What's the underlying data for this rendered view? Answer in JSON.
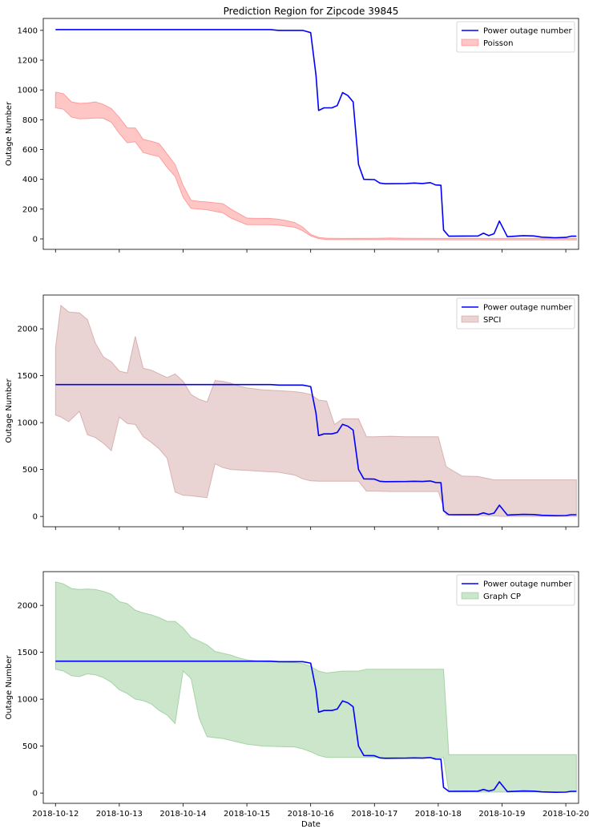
{
  "figure": {
    "title": "Prediction Region for Zipcode 39845",
    "xlabel": "Date"
  },
  "chart_data": [
    {
      "type": "line",
      "title": "Prediction Region for Zipcode 39845",
      "xlabel": "",
      "ylabel": "Outage Number",
      "xlim": [
        "2018-10-11 19:24",
        "2018-10-20 04:48"
      ],
      "ylim": [
        -70,
        1480
      ],
      "yticks": [
        0,
        200,
        400,
        600,
        800,
        1000,
        1200,
        1400
      ],
      "legend_position": "top-right",
      "actual": {
        "name": "Power outage number",
        "color": "#0000ff",
        "points": [
          [
            "2018-10-12 00:00",
            1405
          ],
          [
            "2018-10-15 09:00",
            1405
          ],
          [
            "2018-10-15 12:00",
            1400
          ],
          [
            "2018-10-15 21:00",
            1400
          ],
          [
            "2018-10-16 00:00",
            1385
          ],
          [
            "2018-10-16 02:00",
            1100
          ],
          [
            "2018-10-16 03:00",
            862
          ],
          [
            "2018-10-16 05:00",
            880
          ],
          [
            "2018-10-16 08:00",
            880
          ],
          [
            "2018-10-16 10:00",
            895
          ],
          [
            "2018-10-16 12:00",
            982
          ],
          [
            "2018-10-16 14:00",
            962
          ],
          [
            "2018-10-16 16:00",
            920
          ],
          [
            "2018-10-16 18:00",
            500
          ],
          [
            "2018-10-16 20:00",
            400
          ],
          [
            "2018-10-17 00:00",
            398
          ],
          [
            "2018-10-17 02:00",
            375
          ],
          [
            "2018-10-17 04:00",
            370
          ],
          [
            "2018-10-17 12:00",
            372
          ],
          [
            "2018-10-17 15:00",
            375
          ],
          [
            "2018-10-17 18:00",
            372
          ],
          [
            "2018-10-17 21:00",
            378
          ],
          [
            "2018-10-17 23:00",
            362
          ],
          [
            "2018-10-18 01:00",
            360
          ],
          [
            "2018-10-18 02:00",
            60
          ],
          [
            "2018-10-18 04:00",
            18
          ],
          [
            "2018-10-18 15:00",
            20
          ],
          [
            "2018-10-18 17:00",
            38
          ],
          [
            "2018-10-18 19:00",
            22
          ],
          [
            "2018-10-18 21:00",
            35
          ],
          [
            "2018-10-18 23:00",
            120
          ],
          [
            "2018-10-19 02:00",
            15
          ],
          [
            "2018-10-19 08:00",
            22
          ],
          [
            "2018-10-19 12:00",
            20
          ],
          [
            "2018-10-19 15:00",
            12
          ],
          [
            "2018-10-19 20:00",
            8
          ],
          [
            "2018-10-20 00:00",
            10
          ],
          [
            "2018-10-20 02:00",
            18
          ],
          [
            "2018-10-20 04:00",
            18
          ]
        ]
      },
      "band": {
        "name": "Poisson",
        "color": "#ff8080",
        "alpha": 0.45,
        "edge_alpha": 0.7,
        "x": [
          "2018-10-12 00:00",
          "2018-10-12 03:00",
          "2018-10-12 06:00",
          "2018-10-12 09:00",
          "2018-10-12 12:00",
          "2018-10-12 15:00",
          "2018-10-12 18:00",
          "2018-10-12 21:00",
          "2018-10-13 00:00",
          "2018-10-13 03:00",
          "2018-10-13 06:00",
          "2018-10-13 09:00",
          "2018-10-13 12:00",
          "2018-10-13 15:00",
          "2018-10-13 18:00",
          "2018-10-13 21:00",
          "2018-10-14 00:00",
          "2018-10-14 03:00",
          "2018-10-14 06:00",
          "2018-10-14 09:00",
          "2018-10-14 12:00",
          "2018-10-14 15:00",
          "2018-10-14 18:00",
          "2018-10-14 21:00",
          "2018-10-15 00:00",
          "2018-10-15 03:00",
          "2018-10-15 06:00",
          "2018-10-15 09:00",
          "2018-10-15 12:00",
          "2018-10-15 15:00",
          "2018-10-15 18:00",
          "2018-10-15 21:00",
          "2018-10-16 00:00",
          "2018-10-16 03:00",
          "2018-10-16 06:00",
          "2018-10-16 12:00",
          "2018-10-17 00:00",
          "2018-10-17 06:00",
          "2018-10-17 12:00",
          "2018-10-18 00:00",
          "2018-10-19 00:00",
          "2018-10-20 00:00",
          "2018-10-20 04:00"
        ],
        "lower": [
          880,
          870,
          818,
          806,
          808,
          812,
          810,
          783,
          708,
          645,
          652,
          580,
          565,
          552,
          480,
          420,
          280,
          205,
          200,
          196,
          185,
          175,
          140,
          118,
          96,
          96,
          96,
          96,
          92,
          85,
          78,
          55,
          20,
          2,
          -5,
          -5,
          -5,
          -5,
          -6,
          -6,
          -7,
          -7,
          -7
        ],
        "upper": [
          985,
          975,
          920,
          910,
          912,
          920,
          903,
          875,
          816,
          745,
          745,
          668,
          656,
          640,
          570,
          500,
          360,
          260,
          252,
          248,
          242,
          236,
          200,
          170,
          140,
          138,
          138,
          137,
          132,
          122,
          110,
          80,
          30,
          10,
          5,
          3,
          4,
          6,
          4,
          3,
          3,
          3,
          3
        ]
      }
    },
    {
      "type": "line",
      "title": "",
      "xlabel": "",
      "ylabel": "Outage Number",
      "xlim": [
        "2018-10-11 19:24",
        "2018-10-20 04:48"
      ],
      "ylim": [
        -110,
        2360
      ],
      "yticks": [
        0,
        500,
        1000,
        1500,
        2000
      ],
      "legend_position": "top-right",
      "actual": {
        "name": "Power outage number",
        "color": "#0000ff",
        "same_as_panel": 0
      },
      "band": {
        "name": "SPCI",
        "color": "#c08080",
        "alpha": 0.35,
        "edge_alpha": 0.5,
        "x": [
          "2018-10-12 00:00",
          "2018-10-12 02:00",
          "2018-10-12 05:00",
          "2018-10-12 09:00",
          "2018-10-12 12:00",
          "2018-10-12 15:00",
          "2018-10-12 18:00",
          "2018-10-12 21:00",
          "2018-10-13 00:00",
          "2018-10-13 03:00",
          "2018-10-13 06:00",
          "2018-10-13 09:00",
          "2018-10-13 12:00",
          "2018-10-13 15:00",
          "2018-10-13 18:00",
          "2018-10-13 21:00",
          "2018-10-14 00:00",
          "2018-10-14 03:00",
          "2018-10-14 06:00",
          "2018-10-14 09:00",
          "2018-10-14 12:00",
          "2018-10-14 15:00",
          "2018-10-14 18:00",
          "2018-10-14 21:00",
          "2018-10-15 00:00",
          "2018-10-15 06:00",
          "2018-10-15 12:00",
          "2018-10-15 18:00",
          "2018-10-15 21:00",
          "2018-10-16 00:00",
          "2018-10-16 03:00",
          "2018-10-16 06:00",
          "2018-10-16 09:00",
          "2018-10-16 12:00",
          "2018-10-16 18:00",
          "2018-10-16 21:00",
          "2018-10-17 00:00",
          "2018-10-17 06:00",
          "2018-10-17 12:00",
          "2018-10-18 00:00",
          "2018-10-18 03:00",
          "2018-10-18 06:00",
          "2018-10-18 09:00",
          "2018-10-18 15:00",
          "2018-10-18 21:00",
          "2018-10-19 00:00",
          "2018-10-20 00:00",
          "2018-10-20 04:00"
        ],
        "lower": [
          1080,
          1060,
          1010,
          1120,
          870,
          840,
          780,
          700,
          1060,
          990,
          980,
          850,
          790,
          720,
          620,
          260,
          225,
          220,
          210,
          200,
          560,
          520,
          500,
          495,
          490,
          480,
          470,
          440,
          400,
          380,
          375,
          375,
          375,
          375,
          375,
          270,
          270,
          265,
          265,
          265,
          15,
          10,
          10,
          10,
          5,
          0,
          0,
          0
        ],
        "upper": [
          1800,
          2250,
          2180,
          2170,
          2100,
          1850,
          1700,
          1650,
          1550,
          1530,
          1920,
          1580,
          1560,
          1520,
          1480,
          1520,
          1440,
          1300,
          1250,
          1220,
          1450,
          1440,
          1420,
          1390,
          1370,
          1350,
          1340,
          1330,
          1320,
          1300,
          1240,
          1230,
          980,
          1040,
          1040,
          850,
          850,
          855,
          850,
          850,
          530,
          480,
          430,
          425,
          390,
          390,
          390,
          390
        ]
      }
    },
    {
      "type": "line",
      "title": "",
      "xlabel": "Date",
      "ylabel": "Outage Number",
      "xlim": [
        "2018-10-11 19:24",
        "2018-10-20 04:48"
      ],
      "ylim": [
        -110,
        2360
      ],
      "yticks": [
        0,
        500,
        1000,
        1500,
        2000
      ],
      "xticks": [
        "2018-10-12",
        "2018-10-13",
        "2018-10-14",
        "2018-10-15",
        "2018-10-16",
        "2018-10-17",
        "2018-10-18",
        "2018-10-19",
        "2018-10-20"
      ],
      "legend_position": "top-right",
      "actual": {
        "name": "Power outage number",
        "color": "#0000ff",
        "same_as_panel": 0
      },
      "band": {
        "name": "Graph CP",
        "color": "#60b060",
        "alpha": 0.32,
        "edge_alpha": 0.45,
        "x": [
          "2018-10-12 00:00",
          "2018-10-12 03:00",
          "2018-10-12 06:00",
          "2018-10-12 09:00",
          "2018-10-12 12:00",
          "2018-10-12 15:00",
          "2018-10-12 18:00",
          "2018-10-12 21:00",
          "2018-10-13 00:00",
          "2018-10-13 03:00",
          "2018-10-13 06:00",
          "2018-10-13 09:00",
          "2018-10-13 12:00",
          "2018-10-13 15:00",
          "2018-10-13 18:00",
          "2018-10-13 21:00",
          "2018-10-14 00:00",
          "2018-10-14 03:00",
          "2018-10-14 06:00",
          "2018-10-14 09:00",
          "2018-10-14 12:00",
          "2018-10-14 15:00",
          "2018-10-14 18:00",
          "2018-10-14 21:00",
          "2018-10-15 00:00",
          "2018-10-15 06:00",
          "2018-10-15 12:00",
          "2018-10-15 18:00",
          "2018-10-15 21:00",
          "2018-10-16 00:00",
          "2018-10-16 03:00",
          "2018-10-16 06:00",
          "2018-10-16 12:00",
          "2018-10-16 18:00",
          "2018-10-16 21:00",
          "2018-10-17 00:00",
          "2018-10-17 12:00",
          "2018-10-18 00:00",
          "2018-10-18 02:00",
          "2018-10-18 04:00",
          "2018-10-18 12:00",
          "2018-10-19 00:00",
          "2018-10-20 00:00",
          "2018-10-20 04:00"
        ],
        "lower": [
          1320,
          1300,
          1250,
          1240,
          1270,
          1260,
          1230,
          1180,
          1100,
          1060,
          1000,
          985,
          950,
          880,
          830,
          740,
          1300,
          1220,
          800,
          600,
          590,
          580,
          560,
          540,
          520,
          500,
          495,
          490,
          470,
          440,
          400,
          380,
          380,
          380,
          380,
          380,
          375,
          375,
          375,
          10,
          10,
          10,
          10,
          10
        ],
        "upper": [
          2250,
          2230,
          2180,
          2170,
          2175,
          2170,
          2150,
          2120,
          2040,
          2020,
          1950,
          1920,
          1900,
          1870,
          1830,
          1830,
          1760,
          1660,
          1620,
          1580,
          1510,
          1490,
          1470,
          1440,
          1420,
          1400,
          1395,
          1390,
          1380,
          1350,
          1300,
          1280,
          1300,
          1300,
          1320,
          1320,
          1320,
          1320,
          1320,
          410,
          410,
          410,
          410,
          410
        ]
      }
    }
  ]
}
